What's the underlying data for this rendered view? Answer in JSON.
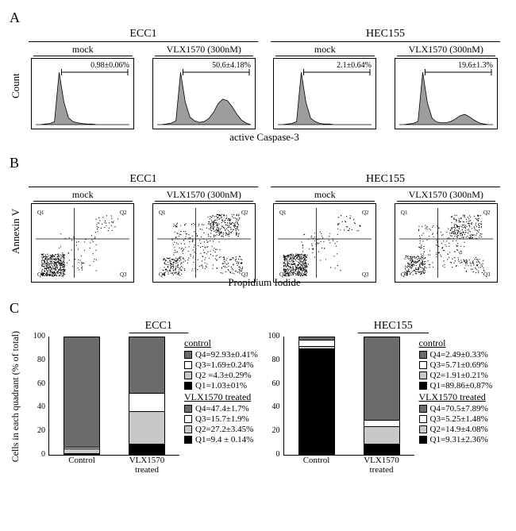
{
  "panelA": {
    "label": "A",
    "yaxis": "Count",
    "xaxis": "active Caspase-3",
    "cellLines": [
      {
        "name": "ECC1",
        "treatments": [
          {
            "label": "mock",
            "stat": "0.98±0.06%",
            "hist": [
              0,
              0,
              1,
              2,
              5,
              92,
              40,
              12,
              5,
              3,
              2,
              1,
              1,
              0,
              0,
              0,
              0,
              0,
              0,
              0,
              0
            ]
          },
          {
            "label": "VLX1570 (300nM)",
            "stat": "50.6±4.18%",
            "hist": [
              0,
              0,
              1,
              2,
              5,
              70,
              30,
              10,
              5,
              3,
              4,
              8,
              16,
              28,
              34,
              32,
              24,
              14,
              6,
              2,
              0
            ]
          }
        ]
      },
      {
        "name": "HEC155",
        "treatments": [
          {
            "label": "mock",
            "stat": "2.1±0.64%",
            "hist": [
              0,
              0,
              1,
              2,
              5,
              90,
              38,
              11,
              5,
              2,
              1,
              1,
              0,
              0,
              0,
              0,
              0,
              0,
              0,
              0,
              0
            ]
          },
          {
            "label": "VLX1570 (300nM)",
            "stat": "19.6±1.3%",
            "hist": [
              0,
              0,
              1,
              2,
              5,
              82,
              34,
              10,
              4,
              3,
              3,
              5,
              9,
              14,
              16,
              12,
              7,
              3,
              1,
              0,
              0
            ]
          }
        ]
      }
    ],
    "colors": {
      "fill": "#9d9d9d",
      "stroke": "#000000",
      "bg": "#ffffff",
      "axis": "#000000"
    }
  },
  "panelB": {
    "label": "B",
    "yaxis": "Annexin V",
    "xaxis": "Propidium Iodide",
    "cellLines": [
      {
        "name": "ECC1",
        "treatments": [
          {
            "label": "mock",
            "quadMarks": [
              "Q1",
              "Q2",
              "Q3",
              "Q4"
            ],
            "cluster": "bl"
          },
          {
            "label": "VLX1570 (300nM)",
            "quadMarks": [
              "Q1",
              "Q2",
              "Q3",
              "Q4"
            ],
            "cluster": "spread"
          }
        ]
      },
      {
        "name": "HEC155",
        "treatments": [
          {
            "label": "mock",
            "quadMarks": [
              "Q1",
              "Q2",
              "Q3",
              "Q4"
            ],
            "cluster": "bl"
          },
          {
            "label": "VLX1570 (300nM)",
            "quadMarks": [
              "Q1",
              "Q2",
              "Q3",
              "Q4"
            ],
            "cluster": "spread2"
          }
        ]
      }
    ],
    "colors": {
      "dot": "#000000",
      "axis": "#000000",
      "cross": "#000000"
    }
  },
  "panelC": {
    "label": "C",
    "yaxis": "Cells in each quadrant (% of total)",
    "yticks": [
      "100",
      "80",
      "60",
      "40",
      "20",
      "0"
    ],
    "charts": [
      {
        "title": "ECC1",
        "bars": [
          {
            "label": "Control",
            "Q1": 1.03,
            "Q2": 4.3,
            "Q3": 1.69,
            "Q4": 92.93
          },
          {
            "label": "VLX1570\ntreated",
            "Q1": 9.4,
            "Q2": 27.2,
            "Q3": 15.7,
            "Q4": 47.4
          }
        ],
        "legend": {
          "control": [
            {
              "k": "Q4",
              "v": "Q4=92.93±0.41%"
            },
            {
              "k": "Q3",
              "v": "Q3=1.69±0.24%"
            },
            {
              "k": "Q2",
              "v": "Q2 =4.3±0.29%"
            },
            {
              "k": "Q1",
              "v": "Q1=1.03±01%"
            }
          ],
          "treated": [
            {
              "k": "Q4",
              "v": "Q4=47.4±1.7%"
            },
            {
              "k": "Q3",
              "v": "Q3=15.7±1.9%"
            },
            {
              "k": "Q2",
              "v": "Q2=27.2±3.45%"
            },
            {
              "k": "Q1",
              "v": "Q1=9.4 ± 0.14%"
            }
          ]
        }
      },
      {
        "title": "HEC155",
        "bars": [
          {
            "label": "Control",
            "Q1": 89.86,
            "Q2": 1.91,
            "Q3": 5.71,
            "Q4": 2.49
          },
          {
            "label": "VLX1570\ntreated",
            "Q1": 9.31,
            "Q2": 14.9,
            "Q3": 5.25,
            "Q4": 70.5
          }
        ],
        "legend": {
          "control": [
            {
              "k": "Q4",
              "v": "Q4=2.49±0.33%"
            },
            {
              "k": "Q3",
              "v": "Q3=5.71±0.69%"
            },
            {
              "k": "Q2",
              "v": "Q2=1.91±0.21%"
            },
            {
              "k": "Q1",
              "v": "Q1=89.86±0.87%"
            }
          ],
          "treated": [
            {
              "k": "Q4",
              "v": "Q4=70.5±7.89%"
            },
            {
              "k": "Q3",
              "v": "Q3=5.25±1.48%"
            },
            {
              "k": "Q2",
              "v": "Q2=14.9±4.08%"
            },
            {
              "k": "Q1",
              "v": "Q1=9.31±2.36%"
            }
          ]
        }
      }
    ],
    "colors": {
      "Q4": "#6b6b6b",
      "Q3": "#ffffff",
      "Q2": "#c8c8c8",
      "Q1": "#000000",
      "stroke": "#000000"
    },
    "legendTitles": {
      "control": "control",
      "treated": "VLX1570 treated"
    }
  }
}
